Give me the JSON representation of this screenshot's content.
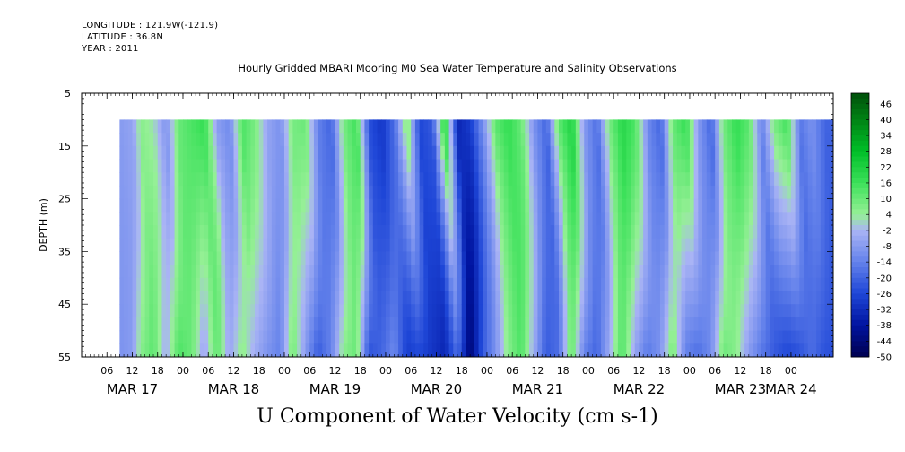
{
  "header": {
    "longitude": "LONGITUDE : 121.9W(-121.9)",
    "latitude": "LATITUDE : 36.8N",
    "year": "YEAR : 2011"
  },
  "plot_title": "Hourly Gridded MBARI Mooring M0 Sea Water Temperature and Salinity Observations",
  "main_title": "U Component of Water Velocity (cm s-1)",
  "chart_data": {
    "type": "heatmap",
    "title": "Hourly Gridded MBARI Mooring M0 Sea Water Temperature and Salinity Observations",
    "xlabel": "",
    "ylabel": "DEPTH (m)",
    "ylim": [
      5,
      55
    ],
    "y_ticks": [
      5,
      15,
      25,
      35,
      45,
      55
    ],
    "x_start_hour": 0,
    "x_end_hour": 178,
    "data_start_hour": 9,
    "data_end_hour": 178,
    "data_depth_range": [
      10,
      55
    ],
    "x_hour_ticks": [
      "06",
      "12",
      "18",
      "00",
      "06",
      "12",
      "18",
      "00",
      "06",
      "12",
      "18",
      "00",
      "06",
      "12",
      "18",
      "00",
      "06",
      "12",
      "18",
      "00",
      "06",
      "12",
      "18",
      "00",
      "06",
      "12",
      "18",
      "00"
    ],
    "x_day_labels": [
      {
        "label": "MAR 17",
        "hour": 12
      },
      {
        "label": "MAR 18",
        "hour": 36
      },
      {
        "label": "MAR 19",
        "hour": 60
      },
      {
        "label": "MAR 20",
        "hour": 84
      },
      {
        "label": "MAR 21",
        "hour": 108
      },
      {
        "label": "MAR 22",
        "hour": 132
      },
      {
        "label": "MAR 23",
        "hour": 156
      },
      {
        "label": "MAR 24",
        "hour": 168
      }
    ],
    "colorbar": {
      "labels": [
        "46",
        "40",
        "34",
        "28",
        "22",
        "16",
        "10",
        "4",
        "-2",
        "-8",
        "-14",
        "-20",
        "-26",
        "-32",
        "-38",
        "-44",
        "-50"
      ],
      "range": [
        -50,
        50
      ]
    },
    "velocity_profile": {
      "hours": [
        9,
        12,
        14,
        17,
        20,
        23,
        26,
        29,
        32,
        35,
        38,
        41,
        44,
        47,
        50,
        53,
        56,
        59,
        62,
        65,
        68,
        71,
        74,
        77,
        80,
        83,
        86,
        89,
        92,
        95,
        98,
        101,
        104,
        107,
        110,
        113,
        116,
        119,
        122,
        125,
        128,
        131,
        134,
        137,
        140,
        143,
        146,
        149,
        152,
        155,
        158,
        161,
        164,
        167,
        170,
        173,
        176
      ],
      "surface": [
        -8,
        -6,
        6,
        2,
        -10,
        10,
        14,
        18,
        -8,
        -12,
        14,
        8,
        -6,
        -10,
        8,
        10,
        -14,
        -20,
        8,
        16,
        -24,
        -30,
        -18,
        10,
        -26,
        -22,
        24,
        -34,
        -28,
        -10,
        12,
        18,
        10,
        -10,
        -20,
        12,
        22,
        -8,
        -18,
        8,
        20,
        14,
        -12,
        -20,
        10,
        18,
        -8,
        -20,
        8,
        18,
        12,
        -14,
        8,
        16,
        -16,
        -10,
        -20
      ],
      "bottom": [
        -10,
        -8,
        6,
        12,
        -4,
        14,
        10,
        -6,
        12,
        -6,
        6,
        -4,
        -10,
        -14,
        10,
        -8,
        -22,
        -14,
        6,
        10,
        -24,
        -20,
        -12,
        -28,
        -26,
        -30,
        -34,
        -18,
        -46,
        -22,
        -10,
        6,
        14,
        -4,
        -22,
        -18,
        12,
        -14,
        -20,
        -4,
        14,
        -6,
        -16,
        -10,
        10,
        -14,
        -18,
        -12,
        10,
        6,
        -8,
        -16,
        -22,
        -26,
        -24,
        -18,
        -24
      ]
    }
  }
}
